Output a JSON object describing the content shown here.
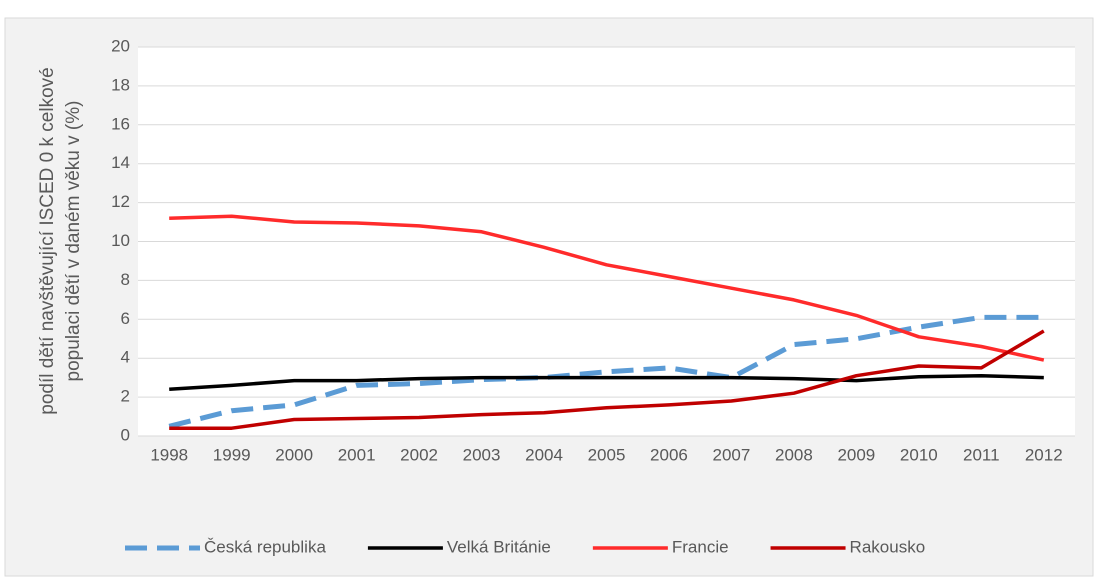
{
  "chart_data": {
    "type": "line",
    "ylabel_lines": [
      "podíl dětí navštěvující ISCED 0 k celkové",
      "populaci dětí v daném věku v (%)"
    ],
    "categories": [
      "1998",
      "1999",
      "2000",
      "2001",
      "2002",
      "2003",
      "2004",
      "2005",
      "2006",
      "2007",
      "2008",
      "2009",
      "2010",
      "2011",
      "2012"
    ],
    "series": [
      {
        "name": "Česká republika",
        "color": "#5b9bd5",
        "dashed": true,
        "values": [
          0.5,
          1.3,
          1.6,
          2.6,
          2.7,
          2.9,
          3.0,
          3.3,
          3.5,
          3.0,
          4.7,
          5.0,
          5.6,
          6.1,
          6.1
        ]
      },
      {
        "name": "Velká Británie",
        "color": "#000000",
        "dashed": false,
        "values": [
          2.4,
          2.6,
          2.85,
          2.85,
          2.95,
          3.0,
          3.0,
          3.0,
          3.0,
          3.0,
          2.95,
          2.85,
          3.05,
          3.1,
          3.0
        ]
      },
      {
        "name": "Francie",
        "color": "#ff2b2b",
        "dashed": false,
        "values": [
          11.2,
          11.3,
          11.0,
          10.95,
          10.8,
          10.5,
          9.7,
          8.8,
          8.2,
          7.6,
          7.0,
          6.2,
          5.1,
          4.6,
          3.9
        ]
      },
      {
        "name": "Rakousko",
        "color": "#c00000",
        "dashed": false,
        "values": [
          0.4,
          0.4,
          0.85,
          0.9,
          0.95,
          1.1,
          1.2,
          1.45,
          1.6,
          1.8,
          2.2,
          3.1,
          3.6,
          3.5,
          5.4
        ]
      }
    ],
    "ylim": [
      0,
      20
    ],
    "yticks": [
      0,
      2,
      4,
      6,
      8,
      10,
      12,
      14,
      16,
      18,
      20
    ],
    "grid": true,
    "legend": "bottom"
  }
}
